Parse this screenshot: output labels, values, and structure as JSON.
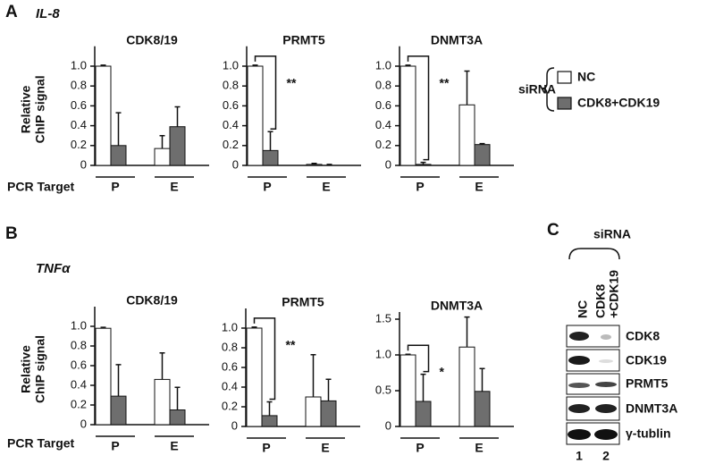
{
  "panel_labels": [
    "A",
    "B",
    "C"
  ],
  "gene_labels": [
    "IL-8",
    "TNFα"
  ],
  "x_axis_label": "PCR Target",
  "legend_title": "siRNA",
  "blot": {
    "header": "siRNA",
    "lanes": [
      [
        "NC"
      ],
      [
        "CDK8",
        "+CDK19"
      ]
    ],
    "bands": [
      "CDK8",
      "CDK19",
      "PRMT5",
      "DNMT3A",
      "γ-tublin"
    ],
    "lane_numbers": [
      "1",
      "2"
    ]
  },
  "chart_data": [
    {
      "type": "bar",
      "title": "CDK8/19",
      "ylabel": [
        "Relative",
        "ChIP signal"
      ],
      "categories": [
        "P",
        "E"
      ],
      "ylim": [
        0,
        1.2
      ],
      "yticks": [
        0,
        0.2,
        0.4,
        0.6,
        0.8,
        {
          "value": 1,
          "label": "1.0"
        }
      ],
      "series": [
        {
          "name": "NC",
          "color": "#ffffff",
          "values": [
            1.0,
            0.17
          ],
          "errors": [
            0.01,
            0.13
          ]
        },
        {
          "name": "CDK8+CDK19",
          "color": "#6e6e6e",
          "values": [
            0.2,
            0.39
          ],
          "errors": [
            0.33,
            0.2
          ]
        }
      ]
    },
    {
      "type": "bar",
      "title": "PRMT5",
      "categories": [
        "P",
        "E"
      ],
      "ylim": [
        0,
        1.2
      ],
      "yticks": [
        0,
        0.2,
        0.4,
        0.6,
        0.8,
        {
          "value": 1,
          "label": "1.0"
        }
      ],
      "series": [
        {
          "name": "NC",
          "color": "#ffffff",
          "values": [
            1.0,
            0.01
          ],
          "errors": [
            0.01,
            0.01
          ]
        },
        {
          "name": "CDK8+CDK19",
          "color": "#6e6e6e",
          "values": [
            0.15,
            0.0
          ],
          "errors": [
            0.19,
            0.01
          ]
        }
      ],
      "annotations": [
        {
          "text": "**"
        }
      ]
    },
    {
      "type": "bar",
      "title": "DNMT3A",
      "categories": [
        "P",
        "E"
      ],
      "ylim": [
        0,
        1.2
      ],
      "yticks": [
        0,
        0.2,
        0.4,
        0.6,
        0.8,
        {
          "value": 1,
          "label": "1.0"
        }
      ],
      "series": [
        {
          "name": "NC",
          "color": "#ffffff",
          "values": [
            1.0,
            0.61
          ],
          "errors": [
            0.01,
            0.34
          ]
        },
        {
          "name": "CDK8+CDK19",
          "color": "#6e6e6e",
          "values": [
            0.01,
            0.21
          ],
          "errors": [
            0.02,
            0.01
          ]
        }
      ],
      "annotations": [
        {
          "text": "**"
        }
      ]
    },
    {
      "type": "bar",
      "title": "CDK8/19",
      "ylabel": [
        "Relative",
        "ChIP signal"
      ],
      "categories": [
        "P",
        "E"
      ],
      "ylim": [
        0,
        1.2
      ],
      "yticks": [
        0,
        0.2,
        0.4,
        0.6,
        0.8,
        {
          "value": 1,
          "label": "1.0"
        }
      ],
      "series": [
        {
          "name": "NC",
          "color": "#ffffff",
          "values": [
            0.98,
            0.46
          ],
          "errors": [
            0.01,
            0.27
          ]
        },
        {
          "name": "CDK8+CDK19",
          "color": "#6e6e6e",
          "values": [
            0.29,
            0.15
          ],
          "errors": [
            0.32,
            0.23
          ]
        }
      ]
    },
    {
      "type": "bar",
      "title": "PRMT5",
      "categories": [
        "P",
        "E"
      ],
      "ylim": [
        0,
        1.2
      ],
      "yticks": [
        0,
        0.2,
        0.4,
        0.6,
        0.8,
        {
          "value": 1,
          "label": "1.0"
        }
      ],
      "series": [
        {
          "name": "NC",
          "color": "#ffffff",
          "values": [
            1.0,
            0.3
          ],
          "errors": [
            0.01,
            0.43
          ]
        },
        {
          "name": "CDK8+CDK19",
          "color": "#6e6e6e",
          "values": [
            0.11,
            0.26
          ],
          "errors": [
            0.14,
            0.22
          ]
        }
      ],
      "annotations": [
        {
          "text": "**"
        }
      ]
    },
    {
      "type": "bar",
      "title": "DNMT3A",
      "categories": [
        "P",
        "E"
      ],
      "ylim": [
        0,
        1.6
      ],
      "yticks": [
        0,
        0.5,
        {
          "value": 1,
          "label": "1.0"
        },
        1.5
      ],
      "series": [
        {
          "name": "NC",
          "color": "#ffffff",
          "values": [
            1.0,
            1.11
          ],
          "errors": [
            0.01,
            0.42
          ]
        },
        {
          "name": "CDK8+CDK19",
          "color": "#6e6e6e",
          "values": [
            0.35,
            0.49
          ],
          "errors": [
            0.38,
            0.32
          ]
        }
      ],
      "annotations": [
        {
          "text": "*"
        }
      ]
    }
  ]
}
